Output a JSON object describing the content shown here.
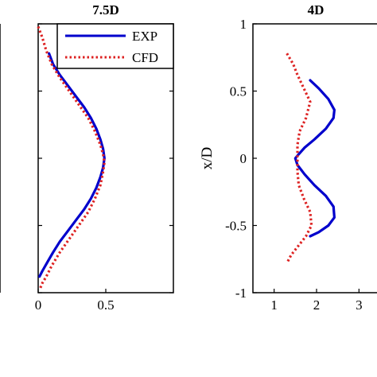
{
  "chart_data": [
    {
      "type": "line",
      "panel": "left-edge (cropped)",
      "title": "",
      "series": []
    },
    {
      "type": "line",
      "title": "7.5D",
      "xlim": [
        0,
        1
      ],
      "ylim": [
        -1,
        1
      ],
      "xticks": [
        "0",
        "0.5"
      ],
      "xtick_values": [
        0,
        0.5
      ],
      "legend": {
        "position": "top-right",
        "entries": [
          "EXP",
          "CFD"
        ]
      },
      "series": [
        {
          "name": "EXP",
          "color": "#0000cc",
          "style": "solid",
          "x": [
            0.08,
            0.11,
            0.16,
            0.22,
            0.28,
            0.34,
            0.39,
            0.43,
            0.46,
            0.48,
            0.49,
            0.48,
            0.46,
            0.43,
            0.39,
            0.34,
            0.28,
            0.22,
            0.16,
            0.11,
            0.07,
            0.03,
            0.01
          ],
          "y": [
            0.78,
            0.7,
            0.62,
            0.54,
            0.46,
            0.38,
            0.3,
            0.22,
            0.14,
            0.07,
            0.0,
            -0.07,
            -0.14,
            -0.22,
            -0.3,
            -0.38,
            -0.46,
            -0.54,
            -0.62,
            -0.7,
            -0.77,
            -0.84,
            -0.88
          ]
        },
        {
          "name": "CFD",
          "color": "#dd2222",
          "style": "dotted",
          "x": [
            0.0,
            0.03,
            0.06,
            0.1,
            0.16,
            0.23,
            0.3,
            0.37,
            0.42,
            0.46,
            0.48,
            0.49,
            0.48,
            0.46,
            0.42,
            0.37,
            0.3,
            0.23,
            0.16,
            0.1,
            0.06,
            0.03,
            0.01
          ],
          "y": [
            0.98,
            0.9,
            0.8,
            0.7,
            0.6,
            0.5,
            0.4,
            0.3,
            0.2,
            0.1,
            0.03,
            -0.03,
            -0.1,
            -0.2,
            -0.3,
            -0.4,
            -0.5,
            -0.6,
            -0.7,
            -0.8,
            -0.88,
            -0.93,
            -0.98
          ]
        }
      ]
    },
    {
      "type": "line",
      "title": "4D",
      "ylabel": "x/D",
      "xlim": [
        0.5,
        3.5
      ],
      "ylim": [
        -1,
        1
      ],
      "xticks": [
        "1",
        "2",
        "3"
      ],
      "xtick_values": [
        1,
        2,
        3
      ],
      "yticks": [
        "-1",
        "-0.5",
        "0",
        "0.5",
        "1"
      ],
      "ytick_values": [
        -1,
        -0.5,
        0,
        0.5,
        1
      ],
      "series": [
        {
          "name": "EXP",
          "color": "#0000cc",
          "style": "solid",
          "x": [
            1.85,
            2.05,
            2.28,
            2.42,
            2.4,
            2.22,
            1.95,
            1.72,
            1.58,
            1.5,
            1.55,
            1.72,
            1.95,
            2.22,
            2.4,
            2.42,
            2.28,
            2.05,
            1.85
          ],
          "y": [
            0.58,
            0.52,
            0.44,
            0.36,
            0.3,
            0.22,
            0.14,
            0.08,
            0.03,
            0.0,
            -0.05,
            -0.12,
            -0.2,
            -0.28,
            -0.36,
            -0.44,
            -0.5,
            -0.55,
            -0.58
          ]
        },
        {
          "name": "CFD",
          "color": "#dd2222",
          "style": "dotted",
          "x": [
            1.3,
            1.45,
            1.55,
            1.7,
            1.85,
            1.75,
            1.6,
            1.55,
            1.55,
            1.55,
            1.58,
            1.7,
            1.85,
            1.88,
            1.75,
            1.55,
            1.4,
            1.3
          ],
          "y": [
            0.78,
            0.7,
            0.62,
            0.52,
            0.42,
            0.3,
            0.2,
            0.1,
            0.0,
            -0.1,
            -0.2,
            -0.3,
            -0.4,
            -0.5,
            -0.58,
            -0.66,
            -0.72,
            -0.78
          ]
        }
      ]
    }
  ]
}
